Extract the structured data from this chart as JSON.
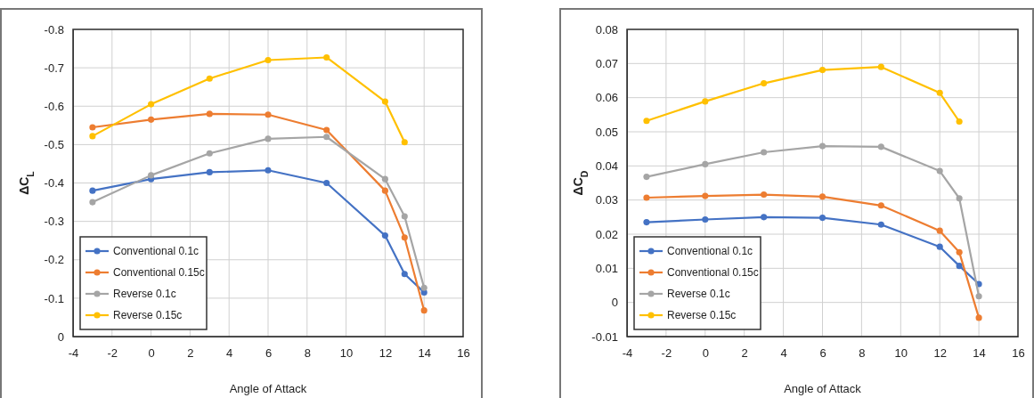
{
  "chart_data": [
    {
      "type": "line",
      "xlabel": "Angle of Attack",
      "ylabel": "ΔC$_{L}$",
      "x": [
        -3,
        0,
        3,
        6,
        9,
        12,
        13,
        14
      ],
      "xlim": [
        -4,
        16
      ],
      "xticks": [
        -4,
        -2,
        0,
        2,
        4,
        6,
        8,
        10,
        12,
        14,
        16
      ],
      "ylim": [
        0,
        -0.8
      ],
      "yticks": [
        0,
        -0.1,
        -0.2,
        -0.3,
        -0.4,
        -0.5,
        -0.6,
        -0.7,
        -0.8
      ],
      "grid": true,
      "legend": "bottom left",
      "marker": "circle",
      "line_style": "solid",
      "series": [
        {
          "name": "Conventional 0.1c",
          "color": "#4472c4",
          "values": [
            -0.38,
            -0.41,
            -0.428,
            -0.433,
            -0.4,
            -0.263,
            -0.163,
            -0.115
          ]
        },
        {
          "name": "Conventional 0.15c",
          "color": "#ed7d31",
          "values": [
            -0.545,
            -0.565,
            -0.58,
            -0.578,
            -0.538,
            -0.38,
            -0.258,
            -0.068
          ]
        },
        {
          "name": "Reverse 0.1c",
          "color": "#a5a5a5",
          "values": [
            -0.35,
            -0.42,
            -0.477,
            -0.515,
            -0.52,
            -0.41,
            -0.313,
            -0.127
          ]
        },
        {
          "name": "Reverse 0.15c",
          "color": "#ffc000",
          "x": [
            -3,
            0,
            3,
            6,
            9,
            12,
            13
          ],
          "values": [
            -0.522,
            -0.605,
            -0.672,
            -0.72,
            -0.727,
            -0.612,
            -0.506
          ]
        }
      ]
    },
    {
      "type": "line",
      "xlabel": "Angle of Attack",
      "ylabel": "ΔC$_{D}$",
      "x": [
        -3,
        0,
        3,
        6,
        9,
        12,
        13,
        14
      ],
      "xlim": [
        -4,
        16
      ],
      "xticks": [
        -4,
        -2,
        0,
        2,
        4,
        6,
        8,
        10,
        12,
        14,
        16
      ],
      "ylim": [
        -0.01,
        0.08
      ],
      "yticks": [
        -0.01,
        0,
        0.01,
        0.02,
        0.03,
        0.04,
        0.05,
        0.06,
        0.07,
        0.08
      ],
      "grid": true,
      "legend": "bottom left",
      "marker": "circle",
      "line_style": "solid",
      "series": [
        {
          "name": "Conventional 0.1c",
          "color": "#4472c4",
          "values": [
            0.0235,
            0.0243,
            0.025,
            0.0248,
            0.0228,
            0.0163,
            0.0107,
            0.0054
          ]
        },
        {
          "name": "Conventional 0.15c",
          "color": "#ed7d31",
          "values": [
            0.0307,
            0.0312,
            0.0316,
            0.031,
            0.0284,
            0.021,
            0.0147,
            -0.0045
          ]
        },
        {
          "name": "Reverse 0.1c",
          "color": "#a5a5a5",
          "values": [
            0.0368,
            0.0405,
            0.044,
            0.0458,
            0.0456,
            0.0385,
            0.0305,
            0.0018
          ]
        },
        {
          "name": "Reverse 0.15c",
          "color": "#ffc000",
          "x": [
            -3,
            0,
            3,
            6,
            9,
            12,
            13
          ],
          "values": [
            0.0532,
            0.0589,
            0.0642,
            0.0681,
            0.069,
            0.0614,
            0.053
          ]
        }
      ]
    }
  ]
}
